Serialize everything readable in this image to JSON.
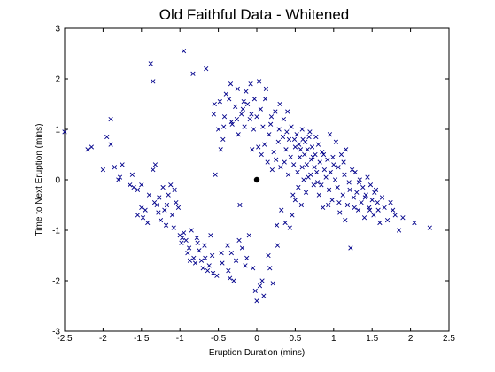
{
  "chart_data": {
    "type": "scatter",
    "title": "Old Faithful Data - Whitened",
    "xlabel": "Eruption Duration (mins)",
    "ylabel": "Time to Next Eruption (mins)",
    "xlim": [
      -2.5,
      2.5
    ],
    "ylim": [
      -3,
      3
    ],
    "xticks": [
      -2.5,
      -2,
      -1.5,
      -1,
      -0.5,
      0,
      0.5,
      1,
      1.5,
      2,
      2.5
    ],
    "xtick_labels": [
      "-2.5",
      "-2",
      "-1.5",
      "-1",
      "-0.5",
      "0",
      "0.5",
      "1",
      "1.5",
      "2",
      "2.5"
    ],
    "yticks": [
      -3,
      -2,
      -1,
      0,
      1,
      2,
      3
    ],
    "ytick_labels": [
      "-3",
      "-2",
      "-1",
      "0",
      "1",
      "2",
      "3"
    ],
    "grid": false,
    "marker_color": "#00008B",
    "mean_marker_color": "#000000",
    "mean_point": [
      0,
      0
    ],
    "series": [
      {
        "marker": "x",
        "points": [
          [
            -2.5,
            0.95
          ],
          [
            -2.2,
            0.6
          ],
          [
            -2.15,
            0.65
          ],
          [
            -2.0,
            0.2
          ],
          [
            -1.95,
            0.85
          ],
          [
            -1.9,
            0.7
          ],
          [
            -1.9,
            1.2
          ],
          [
            -1.85,
            0.25
          ],
          [
            -1.8,
            0.0
          ],
          [
            -1.78,
            0.05
          ],
          [
            -1.75,
            0.3
          ],
          [
            -1.65,
            -0.1
          ],
          [
            -1.6,
            -0.15
          ],
          [
            -1.55,
            -0.2
          ],
          [
            -1.55,
            -0.7
          ],
          [
            -1.5,
            -0.1
          ],
          [
            -1.5,
            -0.55
          ],
          [
            -1.45,
            -0.6
          ],
          [
            -1.4,
            -0.3
          ],
          [
            -1.38,
            2.3
          ],
          [
            -1.35,
            1.95
          ],
          [
            -1.35,
            0.2
          ],
          [
            -1.32,
            0.3
          ],
          [
            -1.3,
            -0.5
          ],
          [
            -1.28,
            -0.65
          ],
          [
            -1.25,
            -0.8
          ],
          [
            -1.22,
            -0.15
          ],
          [
            -1.2,
            -0.6
          ],
          [
            -1.18,
            -0.9
          ],
          [
            -1.15,
            -0.3
          ],
          [
            -1.12,
            -0.1
          ],
          [
            -1.1,
            -0.7
          ],
          [
            -1.08,
            -0.95
          ],
          [
            -1.05,
            -0.45
          ],
          [
            -1.02,
            -0.55
          ],
          [
            -1.0,
            -1.1
          ],
          [
            -0.98,
            -1.25
          ],
          [
            -0.95,
            2.55
          ],
          [
            -0.95,
            -1.05
          ],
          [
            -0.92,
            -1.2
          ],
          [
            -0.9,
            -1.45
          ],
          [
            -0.88,
            -1.35
          ],
          [
            -0.85,
            -1.0
          ],
          [
            -0.83,
            2.1
          ],
          [
            -0.82,
            -1.55
          ],
          [
            -0.8,
            -1.65
          ],
          [
            -0.78,
            -1.15
          ],
          [
            -0.75,
            -1.4
          ],
          [
            -0.72,
            -1.6
          ],
          [
            -0.7,
            -1.75
          ],
          [
            -0.68,
            -1.3
          ],
          [
            -0.66,
            2.2
          ],
          [
            -0.64,
            -1.8
          ],
          [
            -0.62,
            -1.7
          ],
          [
            -0.6,
            -1.1
          ],
          [
            -0.58,
            -1.5
          ],
          [
            -0.56,
            1.3
          ],
          [
            -0.55,
            1.5
          ],
          [
            -0.54,
            0.1
          ],
          [
            -0.52,
            -1.9
          ],
          [
            -0.5,
            1.0
          ],
          [
            -0.48,
            1.55
          ],
          [
            -0.47,
            0.6
          ],
          [
            -0.46,
            -1.45
          ],
          [
            -0.44,
            0.8
          ],
          [
            -0.42,
            1.25
          ],
          [
            -0.4,
            1.7
          ],
          [
            -0.38,
            -1.3
          ],
          [
            -0.36,
            1.6
          ],
          [
            -0.35,
            -1.95
          ],
          [
            -0.34,
            1.9
          ],
          [
            -0.32,
            1.1
          ],
          [
            -0.3,
            -2.0
          ],
          [
            -0.28,
            1.45
          ],
          [
            -0.27,
            -1.6
          ],
          [
            -0.26,
            1.2
          ],
          [
            -0.25,
            1.8
          ],
          [
            -0.24,
            0.9
          ],
          [
            -0.22,
            -0.5
          ],
          [
            -0.2,
            1.3
          ],
          [
            -0.19,
            -1.35
          ],
          [
            -0.18,
            1.4
          ],
          [
            -0.16,
            1.05
          ],
          [
            -0.15,
            -1.7
          ],
          [
            -0.14,
            1.75
          ],
          [
            -0.12,
            1.5
          ],
          [
            -0.1,
            -1.1
          ],
          [
            -0.09,
            1.2
          ],
          [
            -0.08,
            1.9
          ],
          [
            -0.06,
            0.6
          ],
          [
            -0.05,
            -1.75
          ],
          [
            -0.04,
            1.0
          ],
          [
            -0.03,
            1.6
          ],
          [
            -0.02,
            -2.2
          ],
          [
            0.0,
            1.25
          ],
          [
            0.0,
            -2.4
          ],
          [
            0.02,
            0.65
          ],
          [
            0.03,
            1.95
          ],
          [
            0.04,
            -2.1
          ],
          [
            0.05,
            1.4
          ],
          [
            0.06,
            0.5
          ],
          [
            0.08,
            1.05
          ],
          [
            0.09,
            -2.3
          ],
          [
            0.1,
            0.7
          ],
          [
            0.12,
            1.8
          ],
          [
            0.14,
            0.35
          ],
          [
            0.15,
            -1.5
          ],
          [
            0.16,
            0.9
          ],
          [
            0.18,
            1.1
          ],
          [
            0.2,
            0.2
          ],
          [
            0.21,
            -2.05
          ],
          [
            0.22,
            0.55
          ],
          [
            0.24,
            1.35
          ],
          [
            0.25,
            0.4
          ],
          [
            0.26,
            -0.9
          ],
          [
            0.28,
            0.75
          ],
          [
            0.3,
            1.5
          ],
          [
            0.31,
            0.25
          ],
          [
            0.32,
            -0.6
          ],
          [
            0.34,
            0.85
          ],
          [
            0.35,
            1.2
          ],
          [
            0.36,
            0.35
          ],
          [
            0.38,
            0.6
          ],
          [
            0.4,
            1.35
          ],
          [
            0.41,
            0.1
          ],
          [
            0.42,
            0.8
          ],
          [
            0.44,
            0.45
          ],
          [
            0.45,
            1.05
          ],
          [
            0.46,
            -0.7
          ],
          [
            0.48,
            0.3
          ],
          [
            0.5,
            0.65
          ],
          [
            0.5,
            -0.4
          ],
          [
            0.52,
            0.9
          ],
          [
            0.53,
            0.15
          ],
          [
            0.55,
            0.7
          ],
          [
            0.56,
            0.45
          ],
          [
            0.57,
            0.6
          ],
          [
            0.58,
            -0.5
          ],
          [
            0.6,
            0.8
          ],
          [
            0.61,
            0.0
          ],
          [
            0.62,
            0.5
          ],
          [
            0.63,
            0.75
          ],
          [
            0.64,
            -0.25
          ],
          [
            0.65,
            0.3
          ],
          [
            0.66,
            0.6
          ],
          [
            0.68,
            0.85
          ],
          [
            0.7,
            0.1
          ],
          [
            0.71,
            0.4
          ],
          [
            0.72,
            0.65
          ],
          [
            0.74,
            -0.1
          ],
          [
            0.75,
            0.25
          ],
          [
            0.76,
            0.5
          ],
          [
            0.78,
            0.15
          ],
          [
            0.8,
            0.7
          ],
          [
            0.81,
            -0.3
          ],
          [
            0.82,
            0.35
          ],
          [
            0.84,
            -0.1
          ],
          [
            0.85,
            0.55
          ],
          [
            0.86,
            -0.55
          ],
          [
            0.88,
            0.2
          ],
          [
            0.9,
            0.05
          ],
          [
            0.92,
            0.4
          ],
          [
            0.94,
            -0.2
          ],
          [
            0.95,
            0.9
          ],
          [
            0.96,
            0.15
          ],
          [
            0.98,
            -0.4
          ],
          [
            1.0,
            0.3
          ],
          [
            1.02,
            0.0
          ],
          [
            1.03,
            0.75
          ],
          [
            1.05,
            -0.15
          ],
          [
            1.06,
            0.25
          ],
          [
            1.08,
            -0.65
          ],
          [
            1.1,
            0.5
          ],
          [
            1.12,
            -0.3
          ],
          [
            1.14,
            0.1
          ],
          [
            1.15,
            -0.8
          ],
          [
            1.16,
            0.6
          ],
          [
            1.18,
            -0.5
          ],
          [
            1.2,
            -0.05
          ],
          [
            1.22,
            -1.35
          ],
          [
            1.24,
            0.2
          ],
          [
            1.26,
            -0.35
          ],
          [
            1.28,
            0.15
          ],
          [
            1.3,
            -0.25
          ],
          [
            1.32,
            -0.6
          ],
          [
            1.34,
            0.0
          ],
          [
            1.36,
            -0.45
          ],
          [
            1.38,
            -0.15
          ],
          [
            1.4,
            -0.75
          ],
          [
            1.42,
            -0.3
          ],
          [
            1.44,
            0.05
          ],
          [
            1.46,
            -0.55
          ],
          [
            1.48,
            -0.1
          ],
          [
            1.5,
            -0.4
          ],
          [
            1.52,
            -0.7
          ],
          [
            1.55,
            -0.2
          ],
          [
            1.58,
            -0.6
          ],
          [
            1.6,
            -0.85
          ],
          [
            1.63,
            -0.35
          ],
          [
            1.66,
            -0.55
          ],
          [
            1.7,
            -0.8
          ],
          [
            1.74,
            -0.45
          ],
          [
            1.77,
            -0.6
          ],
          [
            1.8,
            -0.7
          ],
          [
            1.85,
            -1.0
          ],
          [
            1.9,
            -0.75
          ],
          [
            2.05,
            -0.85
          ],
          [
            2.25,
            -0.95
          ],
          [
            -1.62,
            0.1
          ],
          [
            -1.48,
            -0.75
          ],
          [
            -1.42,
            -0.85
          ],
          [
            -1.33,
            -0.45
          ],
          [
            -1.27,
            -0.35
          ],
          [
            -1.17,
            -0.5
          ],
          [
            -1.07,
            -0.2
          ],
          [
            -0.97,
            -1.15
          ],
          [
            -0.87,
            -1.6
          ],
          [
            -0.77,
            -1.25
          ],
          [
            -0.67,
            -1.55
          ],
          [
            -0.57,
            -1.85
          ],
          [
            -0.45,
            -1.65
          ],
          [
            -0.37,
            -1.8
          ],
          [
            -0.33,
            -1.45
          ],
          [
            -0.23,
            -1.2
          ],
          [
            -0.13,
            -1.55
          ],
          [
            0.07,
            -2.0
          ],
          [
            0.17,
            -1.75
          ],
          [
            0.27,
            -1.3
          ],
          [
            0.37,
            -0.85
          ],
          [
            0.43,
            -0.95
          ],
          [
            0.47,
            -0.3
          ],
          [
            0.54,
            -0.15
          ],
          [
            0.59,
            0.25
          ],
          [
            0.67,
            0.05
          ],
          [
            0.73,
            0.45
          ],
          [
            0.79,
            -0.05
          ],
          [
            0.87,
            0.5
          ],
          [
            0.93,
            -0.5
          ],
          [
            0.99,
            0.45
          ],
          [
            1.07,
            -0.45
          ],
          [
            1.13,
            0.35
          ],
          [
            1.21,
            -0.2
          ],
          [
            1.27,
            -0.55
          ],
          [
            1.33,
            -0.05
          ],
          [
            1.41,
            -0.35
          ],
          [
            1.47,
            -0.6
          ],
          [
            1.53,
            -0.25
          ],
          [
            1.57,
            -0.45
          ],
          [
            -0.43,
            1.05
          ],
          [
            -0.33,
            1.15
          ],
          [
            -0.17,
            1.55
          ],
          [
            -0.07,
            1.3
          ],
          [
            0.11,
            1.6
          ],
          [
            0.19,
            1.25
          ],
          [
            0.29,
            1.0
          ],
          [
            0.39,
            0.95
          ],
          [
            0.49,
            0.8
          ],
          [
            0.59,
            1.0
          ],
          [
            0.69,
            0.95
          ],
          [
            0.77,
            0.85
          ]
        ]
      }
    ]
  }
}
